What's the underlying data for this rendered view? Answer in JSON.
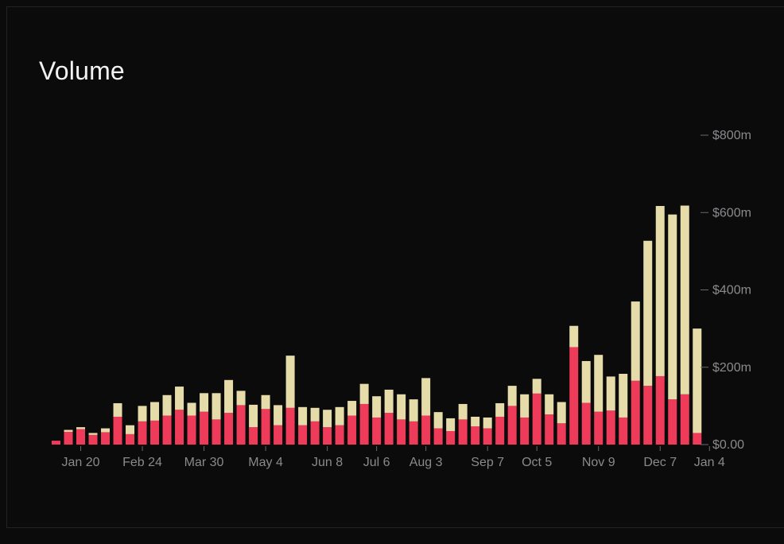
{
  "title": "Volume",
  "colors": {
    "background": "#0b0b0c",
    "primary": "#ef3b5a",
    "secondary": "#e6dcaa",
    "axis": "#8a8a8d"
  },
  "chart_data": {
    "type": "bar",
    "stacked": true,
    "title": "Volume",
    "ylim": [
      0,
      800
    ],
    "y_unit": "$m",
    "y_ticks": [
      {
        "value": 0,
        "label": "$0.00"
      },
      {
        "value": 200,
        "label": "$200m"
      },
      {
        "value": 400,
        "label": "$400m"
      },
      {
        "value": 600,
        "label": "$600m"
      },
      {
        "value": 800,
        "label": "$800m"
      }
    ],
    "x_ticks": [
      {
        "index": 2,
        "label": "Jan 20"
      },
      {
        "index": 7,
        "label": "Feb 24"
      },
      {
        "index": 12,
        "label": "Mar 30"
      },
      {
        "index": 17,
        "label": "May 4"
      },
      {
        "index": 22,
        "label": "Jun 8"
      },
      {
        "index": 26,
        "label": "Jul 6"
      },
      {
        "index": 30,
        "label": "Aug 3"
      },
      {
        "index": 35,
        "label": "Sep 7"
      },
      {
        "index": 39,
        "label": "Oct 5"
      },
      {
        "index": 44,
        "label": "Nov 9"
      },
      {
        "index": 49,
        "label": "Dec 7"
      },
      {
        "index": 53,
        "label": "Jan 4"
      }
    ],
    "grid": false,
    "legend": "none",
    "series": [
      {
        "values": [
          10,
          33,
          40,
          25,
          32,
          72,
          27,
          60,
          62,
          75,
          90,
          75,
          85,
          65,
          82,
          102,
          45,
          92,
          50,
          95,
          50,
          60,
          45,
          50,
          75,
          105,
          70,
          82,
          65,
          60,
          75,
          42,
          35,
          65,
          47,
          42,
          72,
          100,
          70,
          132,
          78,
          55,
          252,
          108,
          85,
          88,
          70,
          165,
          152,
          177,
          117,
          130,
          30
        ]
      },
      {
        "values": [
          0,
          5,
          5,
          5,
          10,
          35,
          23,
          40,
          48,
          53,
          60,
          33,
          48,
          68,
          85,
          37,
          58,
          36,
          52,
          135,
          47,
          35,
          45,
          47,
          38,
          52,
          55,
          60,
          65,
          57,
          97,
          42,
          33,
          40,
          25,
          28,
          35,
          52,
          60,
          38,
          52,
          55,
          55,
          108,
          147,
          88,
          113,
          205,
          375,
          440,
          478,
          488,
          270
        ]
      }
    ]
  }
}
